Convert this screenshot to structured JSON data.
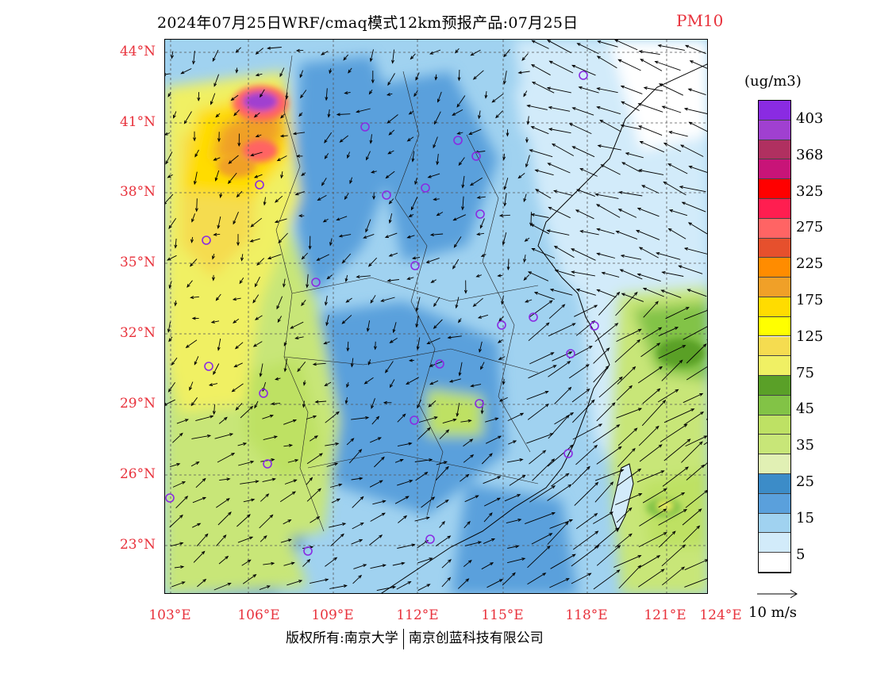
{
  "title": {
    "main": "2024年07月25日WRF/cmaq模式12km预报产品:07月25日",
    "product": "PM10"
  },
  "lat_labels": [
    "44°N",
    "41°N",
    "38°N",
    "35°N",
    "32°N",
    "29°N",
    "26°N",
    "23°N"
  ],
  "lon_labels": [
    "103°E",
    "106°E",
    "109°E",
    "112°E",
    "115°E",
    "118°E",
    "121°E",
    "124°E"
  ],
  "legend": {
    "unit": "(ug/m3)",
    "labels": [
      "403",
      "368",
      "325",
      "275",
      "225",
      "175",
      "125",
      "75",
      "45",
      "35",
      "25",
      "15",
      "5"
    ],
    "colors": [
      "#8a2be2",
      "#a040d0",
      "#b03060",
      "#c81478",
      "#ff0000",
      "#ff1e50",
      "#ff6464",
      "#e6502d",
      "#ff8c00",
      "#f0a028",
      "#ffdc00",
      "#ffff00",
      "#f5dc50",
      "#f0f064",
      "#5aa028",
      "#82c346",
      "#bee164",
      "#c8e678",
      "#e1f0b4",
      "#3c8cc8",
      "#5aa0dc",
      "#a0d2f0",
      "#d2ebfa",
      "#ffffff"
    ]
  },
  "vector_ref": {
    "label": "10 m/s"
  },
  "credit": {
    "left": "版权所有:南京大学",
    "right": "南京创蓝科技有限公司"
  },
  "colors": {
    "label_red": "#e8323c",
    "city_marker": "#8a2be2"
  }
}
